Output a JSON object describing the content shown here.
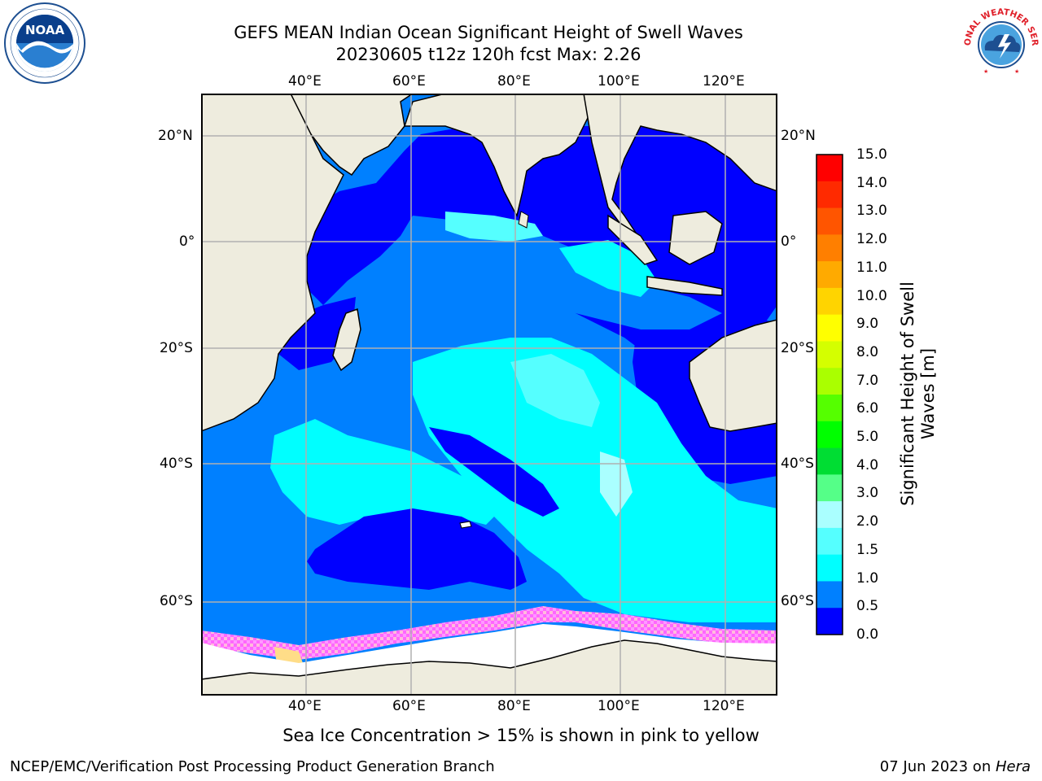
{
  "header": {
    "title_line1": "GEFS MEAN Indian Ocean Significant Height of Swell Waves",
    "title_line2": "20230605 t12z 120h fcst   Max: 2.26"
  },
  "logos": {
    "left": {
      "text": "NOAA",
      "icon": "noaa-logo-icon",
      "ring_text": "NATIONAL OCEANIC AND ATMOSPHERIC ADMINISTRATION · U.S. DEPARTMENT OF COMMERCE"
    },
    "right": {
      "icon": "national-weather-service-logo-icon",
      "ring_text": "NATIONAL WEATHER SERVICE"
    }
  },
  "map": {
    "lon_ticks_top": [
      "40°E",
      "60°E",
      "80°E",
      "100°E",
      "120°E"
    ],
    "lon_ticks_bottom": [
      "40°E",
      "60°E",
      "80°E",
      "100°E",
      "120°E"
    ],
    "lat_ticks_left": [
      "20°N",
      "0°",
      "20°S",
      "40°S",
      "60°S"
    ],
    "lat_ticks_right": [
      "20°N",
      "0°",
      "20°S",
      "40°S",
      "60°S"
    ],
    "extent": {
      "lon": [
        20,
        129
      ],
      "lat": [
        -75,
        27
      ]
    },
    "colors": {
      "land": "#eeecde",
      "sea_ice": "#ffffff",
      "grid": "#b0b0b0",
      "coast": "#000000"
    },
    "regions_description": "swell height field: dark blue (0-0.5 m) in tropics and Southern Ocean lows, cyan (1-2 m) in central/southern Indian Ocean, pink-yellow sea ice edge near Antarctica"
  },
  "colorbar": {
    "label_line1": "Significant Height of Swell",
    "label_line2": "Waves [m]",
    "ticks": [
      "15.0",
      "14.0",
      "13.0",
      "12.0",
      "11.0",
      "10.0",
      "9.0",
      "8.0",
      "7.0",
      "6.0",
      "5.0",
      "4.0",
      "3.0",
      "2.0",
      "1.5",
      "1.0",
      "0.5",
      "0.0"
    ],
    "bins_top_to_bottom": [
      "#ff0000",
      "#ff2a00",
      "#ff5500",
      "#ff7f00",
      "#ffaa00",
      "#ffd400",
      "#ffff00",
      "#d4ff00",
      "#aaff00",
      "#55ff00",
      "#00ff00",
      "#00dd33",
      "#55ff88",
      "#aaffff",
      "#55ffff",
      "#00ffff",
      "#0080ff",
      "#0000ff"
    ]
  },
  "caption": "Sea Ice Concentration > 15% is shown in pink to yellow",
  "footer": {
    "left": "NCEP/EMC/Verification Post Processing Product Generation Branch",
    "right_prefix": "07 Jun 2023 on ",
    "right_italic": "Hera"
  }
}
